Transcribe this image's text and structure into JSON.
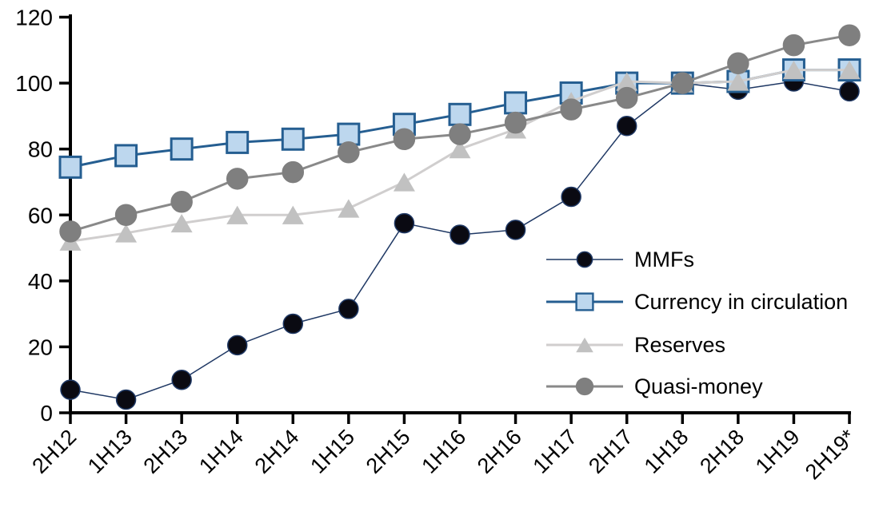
{
  "chart_data": {
    "type": "line",
    "title": "",
    "categories": [
      "2H12",
      "1H13",
      "2H13",
      "1H14",
      "2H14",
      "1H15",
      "2H15",
      "1H16",
      "2H16",
      "1H17",
      "2H17",
      "1H18",
      "2H18",
      "1H19",
      "2H19*"
    ],
    "series": [
      {
        "name": "MMFs",
        "marker": "circle",
        "marker_size": 24,
        "marker_color": "#0a0a12",
        "marker_border": "#1f3864",
        "line_color": "#1f3864",
        "line_width": 1.5,
        "values": [
          7,
          4,
          10,
          20.5,
          27,
          31.5,
          57.5,
          54,
          55.5,
          65.5,
          87,
          100,
          98,
          100.5,
          97.5
        ]
      },
      {
        "name": "Currency in circulation",
        "marker": "square",
        "marker_size": 26,
        "marker_color": "#bdd7ee",
        "marker_border": "#255e91",
        "line_color": "#255e91",
        "line_width": 3,
        "values": [
          74.5,
          78,
          80,
          82,
          83,
          84.5,
          87.5,
          90.5,
          94,
          97,
          100,
          100,
          100.5,
          104,
          104
        ]
      },
      {
        "name": "Reserves",
        "marker": "triangle",
        "marker_size": 27,
        "marker_color": "#c1c1c1",
        "marker_border": "#c1c1c1",
        "line_color": "#d0cece",
        "line_width": 3,
        "values": [
          52,
          54.5,
          57.5,
          60,
          60,
          62,
          70,
          80,
          86,
          94.5,
          100.5,
          100,
          100.5,
          104,
          104
        ]
      },
      {
        "name": "Quasi-money",
        "marker": "circle",
        "marker_size": 26,
        "marker_color": "#7f7f7f",
        "marker_border": "#7f7f7f",
        "line_color": "#898989",
        "line_width": 3,
        "values": [
          55,
          60,
          64,
          71,
          73,
          79,
          83,
          84.5,
          88,
          92,
          95.5,
          100,
          106,
          111.5,
          114.5
        ]
      }
    ],
    "y_axis": {
      "min": 0,
      "max": 120,
      "step": 20,
      "tick_labels": [
        "0",
        "20",
        "40",
        "60",
        "80",
        "100",
        "120"
      ]
    },
    "x_axis": {
      "label_rotation_deg": 45
    },
    "legend": {
      "position": "inside-right",
      "items": [
        "MMFs",
        "Currency in circulation",
        "Reserves",
        "Quasi-money"
      ]
    },
    "grid": "off",
    "axis_color": "#000000",
    "background_color": "#ffffff"
  }
}
